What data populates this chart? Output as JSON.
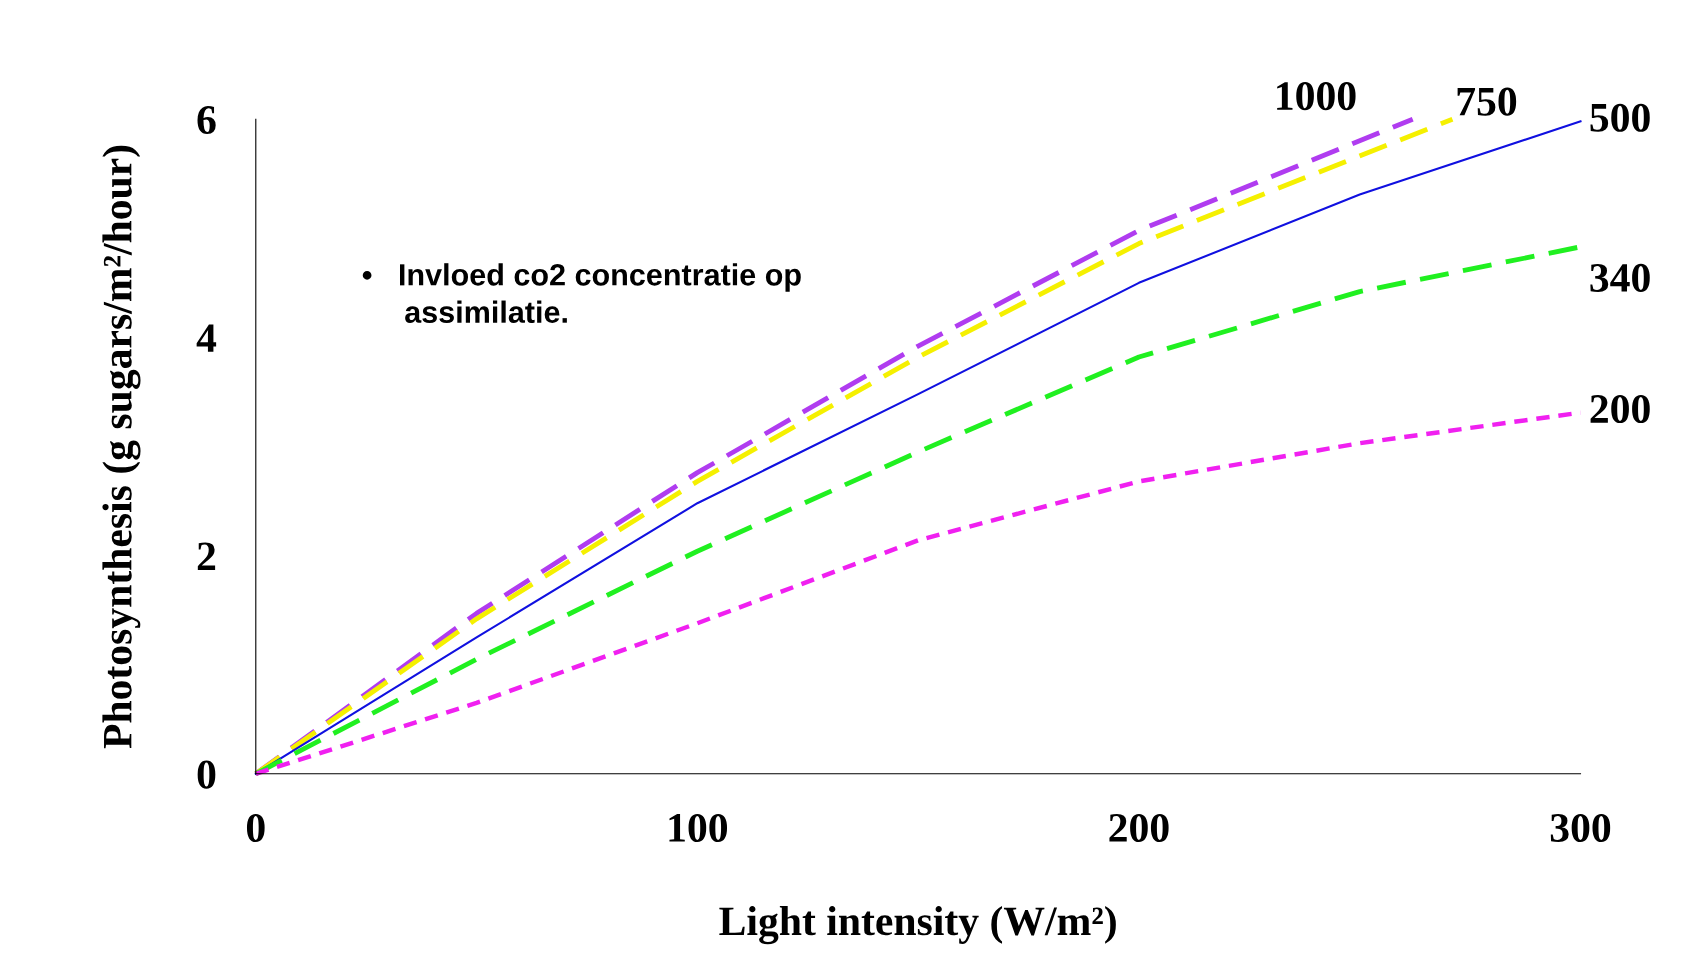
{
  "chart_data": {
    "type": "line",
    "xlabel": "Light intensity (W/m²)",
    "ylabel": "Photosynthesis (g sugars/m²/hour)",
    "x": [
      0,
      50,
      100,
      150,
      200,
      250,
      300
    ],
    "xlim": [
      0,
      300
    ],
    "xticks": [
      0,
      100,
      200,
      300
    ],
    "ylim": [
      0,
      6
    ],
    "yticks": [
      0,
      2,
      4,
      6
    ],
    "grid": false,
    "legend": false,
    "annotations": [
      "•   Invloed co2 concentratie op\n     assimilatie."
    ],
    "series": [
      {
        "name": "1000",
        "color": "#b03cf0",
        "line_style": "dashed",
        "x": [
          0,
          50,
          100,
          150,
          200,
          262
        ],
        "values": [
          0,
          1.47,
          2.76,
          3.92,
          4.98,
          6.0
        ]
      },
      {
        "name": "750",
        "color": "#f5f000",
        "line_style": "dashed",
        "x": [
          0,
          50,
          100,
          150,
          200,
          271
        ],
        "values": [
          0,
          1.42,
          2.68,
          3.82,
          4.86,
          6.0
        ]
      },
      {
        "name": "500",
        "color": "#1010e0",
        "line_style": "solid",
        "values": [
          0,
          1.25,
          2.48,
          3.48,
          4.5,
          5.31,
          5.98
        ]
      },
      {
        "name": "340",
        "color": "#20f020",
        "line_style": "dashed",
        "values": [
          0,
          1.05,
          2.04,
          2.95,
          3.82,
          4.42,
          4.83
        ]
      },
      {
        "name": "200",
        "color": "#f020f0",
        "line_style": "dotted",
        "values": [
          0,
          0.65,
          1.38,
          2.14,
          2.68,
          3.03,
          3.31
        ]
      }
    ]
  }
}
